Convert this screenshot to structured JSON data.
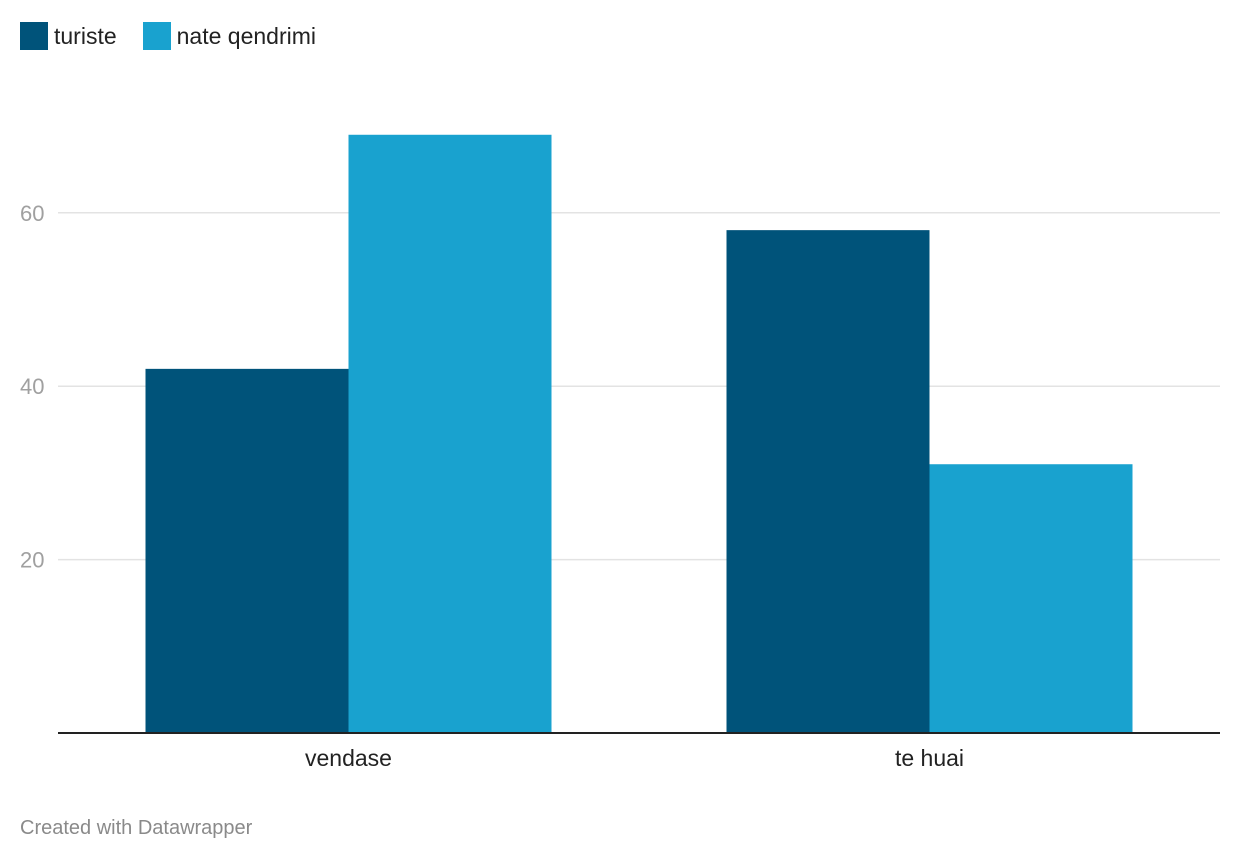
{
  "chart_data": {
    "type": "bar",
    "categories": [
      "vendase",
      "te huai"
    ],
    "series": [
      {
        "name": "turiste",
        "values": [
          42,
          58
        ],
        "color": "#00537a"
      },
      {
        "name": "nate qendrimi",
        "values": [
          69,
          31
        ],
        "color": "#19a2cf"
      }
    ],
    "yticks": [
      20,
      40,
      60
    ],
    "ylim": [
      0,
      80
    ],
    "grid": true,
    "legend_position": "top-left"
  },
  "footer": {
    "credit": "Created with Datawrapper"
  },
  "colors": {
    "grid": "#e3e3e3",
    "axis": "#222222",
    "tick_label": "#a0a0a0",
    "category_label": "#222222"
  }
}
